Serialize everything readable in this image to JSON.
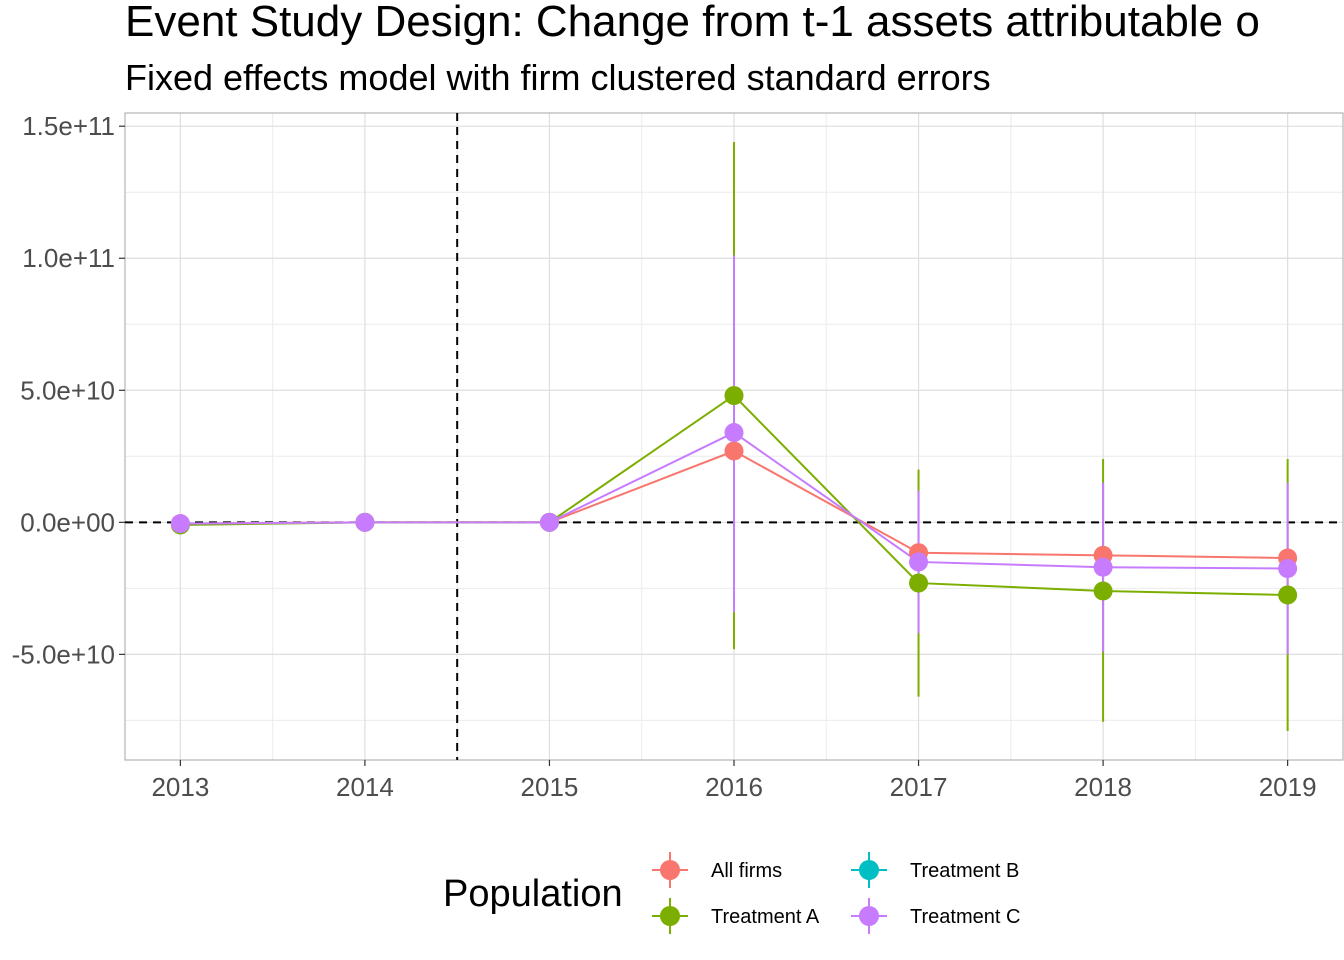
{
  "chart_data": {
    "type": "line",
    "title": "Event Study Design: Change from t-1 assets attributable o",
    "subtitle": "Fixed effects model with firm clustered standard errors",
    "xlabel": "",
    "ylabel": "",
    "x": [
      2013,
      2014,
      2015,
      2016,
      2017,
      2018,
      2019
    ],
    "x_tick_labels": [
      "2013",
      "2014",
      "2015",
      "2016",
      "2017",
      "2018",
      "2019"
    ],
    "xlim": [
      2012.7,
      2019.3
    ],
    "ylim": [
      -90000000000,
      155000000000
    ],
    "y_ticks": [
      150000000000,
      100000000000,
      50000000000,
      0,
      -50000000000
    ],
    "y_tick_labels": [
      "1.5e+11",
      "1.0e+11",
      "5.0e+10",
      "0.0e+00",
      "-5.0e+10"
    ],
    "grid": true,
    "reference_lines": {
      "vertical_x": 2014.5,
      "horizontal_y": 0
    },
    "legend": {
      "title": "Population",
      "position": "bottom",
      "entries": [
        "All firms",
        "Treatment B",
        "Treatment A",
        "Treatment C"
      ]
    },
    "series": [
      {
        "name": "All firms",
        "color": "#F8766D",
        "values": [
          -500000000,
          0,
          0,
          27000000000,
          -11500000000,
          -12500000000,
          -13500000000
        ],
        "lower": [
          null,
          null,
          null,
          null,
          null,
          null,
          null
        ],
        "upper": [
          null,
          null,
          null,
          null,
          null,
          null,
          null
        ]
      },
      {
        "name": "Treatment A",
        "color": "#7CAE00",
        "values": [
          -1000000000,
          0,
          0,
          48000000000,
          -23000000000,
          -26000000000,
          -27500000000
        ],
        "lower": [
          null,
          null,
          null,
          -48000000000,
          -66000000000,
          -75500000000,
          -79000000000
        ],
        "upper": [
          null,
          null,
          null,
          144000000000,
          20000000000,
          24000000000,
          24000000000
        ]
      },
      {
        "name": "Treatment B",
        "color": "#00BFC4",
        "values": [
          null,
          null,
          null,
          null,
          null,
          null,
          null
        ],
        "lower": [
          null,
          null,
          null,
          null,
          null,
          null,
          null
        ],
        "upper": [
          null,
          null,
          null,
          null,
          null,
          null,
          null
        ]
      },
      {
        "name": "Treatment C",
        "color": "#C77CFF",
        "values": [
          -500000000,
          0,
          0,
          34000000000,
          -15000000000,
          -17000000000,
          -17500000000
        ],
        "lower": [
          null,
          null,
          null,
          -34000000000,
          -42000000000,
          -49000000000,
          -50000000000
        ],
        "upper": [
          null,
          null,
          null,
          101000000000,
          12000000000,
          15000000000,
          15000000000
        ]
      }
    ]
  }
}
